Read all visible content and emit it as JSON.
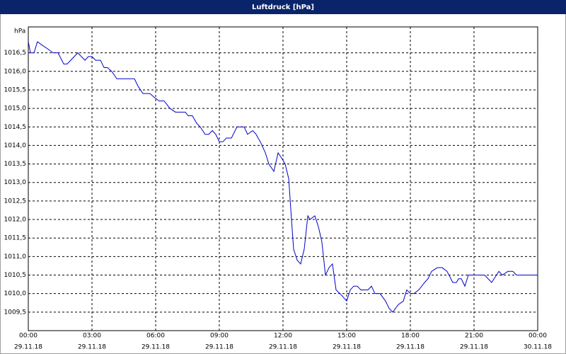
{
  "chart_data": {
    "type": "line",
    "title": "Luftdruck [hPa]",
    "y_unit": "hPa",
    "x": [
      0,
      0.1,
      0.27,
      0.43,
      0.67,
      0.93,
      1.17,
      1.4,
      1.67,
      1.83,
      2,
      2.33,
      2.67,
      2.83,
      3,
      3.17,
      3.4,
      3.57,
      3.73,
      3.93,
      4.17,
      4.5,
      5,
      5.17,
      5.4,
      5.73,
      5.93,
      6.17,
      6.4,
      6.67,
      6.93,
      7.4,
      7.53,
      7.73,
      7.93,
      8.1,
      8.33,
      8.5,
      8.67,
      8.83,
      9,
      9.17,
      9.33,
      9.57,
      9.83,
      10.17,
      10.33,
      10.57,
      10.73,
      10.93,
      11.17,
      11.33,
      11.57,
      11.77,
      12,
      12.1,
      12.27,
      12.4,
      12.5,
      12.67,
      12.83,
      13,
      13.17,
      13.27,
      13.5,
      13.67,
      13.83,
      14,
      14.17,
      14.33,
      14.5,
      14.77,
      15,
      15.17,
      15.33,
      15.5,
      15.67,
      16,
      16.17,
      16.33,
      16.57,
      16.83,
      17,
      17.17,
      17.43,
      17.67,
      17.83,
      18,
      18.17,
      18.4,
      18.67,
      18.83,
      19,
      19.27,
      19.5,
      19.73,
      20,
      20.17,
      20.27,
      20.4,
      20.57,
      20.73,
      21,
      21.5,
      21.83,
      22.17,
      22.33,
      22.6,
      22.83,
      23,
      24
    ],
    "series": [
      {
        "name": "Luftdruck",
        "color": "#0000cc",
        "values": [
          1016.8,
          1016.5,
          1016.5,
          1016.8,
          1016.7,
          1016.6,
          1016.5,
          1016.5,
          1016.2,
          1016.2,
          1016.3,
          1016.5,
          1016.3,
          1016.4,
          1016.4,
          1016.3,
          1016.3,
          1016.1,
          1016.1,
          1016.0,
          1015.8,
          1015.8,
          1015.8,
          1015.6,
          1015.4,
          1015.4,
          1015.3,
          1015.2,
          1015.2,
          1015.0,
          1014.9,
          1014.9,
          1014.8,
          1014.8,
          1014.6,
          1014.5,
          1014.3,
          1014.3,
          1014.4,
          1014.3,
          1014.1,
          1014.1,
          1014.2,
          1014.2,
          1014.5,
          1014.5,
          1014.3,
          1014.4,
          1014.3,
          1014.1,
          1013.8,
          1013.5,
          1013.3,
          1013.8,
          1013.6,
          1013.5,
          1013.1,
          1012.0,
          1011.2,
          1010.9,
          1010.8,
          1011.2,
          1012.1,
          1012.0,
          1012.1,
          1011.8,
          1011.4,
          1010.5,
          1010.7,
          1010.8,
          1010.1,
          1009.95,
          1009.8,
          1010.1,
          1010.2,
          1010.2,
          1010.1,
          1010.1,
          1010.2,
          1010.0,
          1010.0,
          1009.8,
          1009.6,
          1009.5,
          1009.7,
          1009.8,
          1010.1,
          1010.0,
          1010.0,
          1010.1,
          1010.3,
          1010.4,
          1010.6,
          1010.7,
          1010.7,
          1010.6,
          1010.3,
          1010.3,
          1010.4,
          1010.4,
          1010.2,
          1010.5,
          1010.5,
          1010.5,
          1010.3,
          1010.6,
          1010.5,
          1010.6,
          1010.6,
          1010.5,
          1010.5
        ]
      }
    ],
    "xlim": [
      0,
      24
    ],
    "xticks": [
      {
        "value": 0,
        "label": "00:00"
      },
      {
        "value": 3,
        "label": "03:00"
      },
      {
        "value": 6,
        "label": "06:00"
      },
      {
        "value": 9,
        "label": "09:00"
      },
      {
        "value": 12,
        "label": "12:00"
      },
      {
        "value": 15,
        "label": "15:00"
      },
      {
        "value": 18,
        "label": "18:00"
      },
      {
        "value": 21,
        "label": "21:00"
      },
      {
        "value": 24,
        "label": "00:00"
      }
    ],
    "xtick_dates": [
      "29.11.18",
      "29.11.18",
      "29.11.18",
      "29.11.18",
      "29.11.18",
      "29.11.18",
      "29.11.18",
      "29.11.18",
      "30.11.18"
    ],
    "ylim": [
      1009,
      1017.2
    ],
    "yticks": [
      {
        "value": 1009.5,
        "label": "1009,5"
      },
      {
        "value": 1010,
        "label": "1010,0"
      },
      {
        "value": 1010.5,
        "label": "1010,5"
      },
      {
        "value": 1011,
        "label": "1011,0"
      },
      {
        "value": 1011.5,
        "label": "1011,5"
      },
      {
        "value": 1012,
        "label": "1012,0"
      },
      {
        "value": 1012.5,
        "label": "1012,5"
      },
      {
        "value": 1013,
        "label": "1013,0"
      },
      {
        "value": 1013.5,
        "label": "1013,5"
      },
      {
        "value": 1014,
        "label": "1014,0"
      },
      {
        "value": 1014.5,
        "label": "1014,5"
      },
      {
        "value": 1015,
        "label": "1015,0"
      },
      {
        "value": 1015.5,
        "label": "1015,5"
      },
      {
        "value": 1016,
        "label": "1016,0"
      },
      {
        "value": 1016.5,
        "label": "1016,5"
      }
    ],
    "grid": true
  }
}
